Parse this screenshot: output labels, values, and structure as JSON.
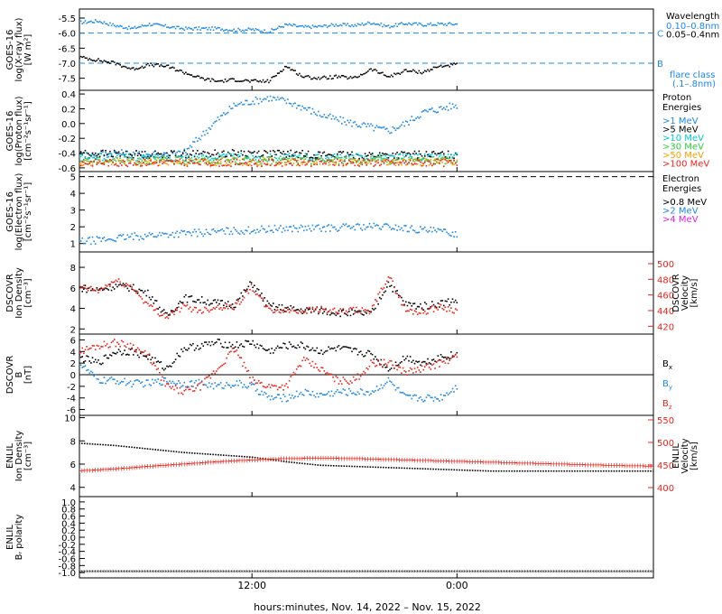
{
  "colors": {
    "black": "#000000",
    "blue": "#1e88e5",
    "cyan": "#00c8d8",
    "green": "#2ecc40",
    "orange": "#f2a100",
    "red": "#e8241a",
    "magenta": "#e020e0"
  },
  "footer": {
    "x_label": "hours:minutes, Nov. 14, 2022 – Nov. 15, 2022",
    "x_ticks": [
      {
        "hour": 12,
        "label": "12:00"
      },
      {
        "hour": 24,
        "label": "0:00"
      }
    ],
    "x_range_hours": [
      1.9,
      35.5
    ]
  },
  "chart_data": [
    {
      "id": "xray",
      "type": "line",
      "ylabel": [
        "GOES-16",
        "log(X-ray flux)",
        "[W m²]"
      ],
      "ylim": [
        -7.9,
        -5.2
      ],
      "y_ticks": [
        -5.5,
        -6.0,
        -6.5,
        -7.0,
        -7.5
      ],
      "y_tick_labels": [
        "-5.5",
        "-6.0",
        "-6.5",
        "-7.0",
        "-7.5"
      ],
      "legend_title": "Wavelength",
      "flare_class_lines": [
        {
          "y": -6.0,
          "label": "C"
        },
        {
          "y": -7.0,
          "label": "B"
        }
      ],
      "flare_class_label": [
        "flare class",
        "(.1–.8nm)"
      ],
      "series": [
        {
          "name": "0.10–0.8nm",
          "color_key": "blue",
          "x": [
            1.9,
            3,
            4,
            5,
            6,
            7,
            8,
            9,
            10,
            11,
            12,
            13,
            14,
            15,
            16,
            17,
            18,
            19,
            20,
            21,
            22,
            23,
            24
          ],
          "y": [
            -5.65,
            -5.6,
            -5.75,
            -5.85,
            -5.7,
            -5.78,
            -5.85,
            -5.85,
            -5.85,
            -5.9,
            -5.88,
            -5.95,
            -5.72,
            -5.8,
            -5.78,
            -5.72,
            -5.75,
            -5.65,
            -5.78,
            -5.68,
            -5.72,
            -5.7,
            -5.7
          ]
        },
        {
          "name": "0.05–0.4nm",
          "color_key": "black",
          "x": [
            1.9,
            3,
            4,
            5,
            6,
            7,
            8,
            9,
            10,
            11,
            12,
            13,
            14,
            15,
            16,
            17,
            18,
            19,
            20,
            21,
            22,
            23,
            24
          ],
          "y": [
            -6.8,
            -6.9,
            -7.0,
            -7.2,
            -7.05,
            -7.1,
            -7.3,
            -7.5,
            -7.6,
            -7.55,
            -7.6,
            -7.6,
            -7.1,
            -7.45,
            -7.5,
            -7.45,
            -7.5,
            -7.2,
            -7.45,
            -7.25,
            -7.3,
            -7.1,
            -7.05
          ]
        }
      ]
    },
    {
      "id": "proton",
      "type": "scatter",
      "ylabel": [
        "GOES-16",
        "log(Proton flux)",
        "[cm⁻²s⁻¹sr⁻¹]"
      ],
      "ylim": [
        -0.65,
        0.45
      ],
      "y_ticks": [
        0.4,
        0.2,
        0.0,
        -0.2,
        -0.4,
        -0.6
      ],
      "y_tick_labels": [
        "0.4",
        "0.2",
        "0.0",
        "-0.2",
        "-0.4",
        "-0.6"
      ],
      "legend_title": "Proton Energies",
      "series": [
        {
          "name": ">1 MeV",
          "color_key": "blue",
          "x": [
            1.9,
            4,
            6,
            8,
            10,
            11,
            12,
            13,
            14,
            15,
            16,
            17,
            18,
            19,
            20,
            21,
            22,
            23,
            24
          ],
          "y": [
            -0.45,
            -0.4,
            -0.42,
            -0.4,
            0.05,
            0.25,
            0.3,
            0.35,
            0.3,
            0.22,
            0.12,
            0.05,
            0.0,
            -0.05,
            -0.1,
            0.0,
            0.15,
            0.2,
            0.25
          ]
        },
        {
          "name": ">5 MeV",
          "color_key": "black",
          "x": [
            1.9,
            6,
            12,
            18,
            24
          ],
          "y": [
            -0.4,
            -0.42,
            -0.4,
            -0.43,
            -0.42
          ]
        },
        {
          "name": ">10 MeV",
          "color_key": "cyan",
          "x": [
            1.9,
            6,
            12,
            18,
            24
          ],
          "y": [
            -0.45,
            -0.46,
            -0.45,
            -0.46,
            -0.45
          ]
        },
        {
          "name": ">30 MeV",
          "color_key": "green",
          "x": [
            1.9,
            6,
            12,
            18,
            24
          ],
          "y": [
            -0.5,
            -0.5,
            -0.5,
            -0.5,
            -0.5
          ]
        },
        {
          "name": ">50 MeV",
          "color_key": "orange",
          "x": [
            1.9,
            6,
            12,
            18,
            24
          ],
          "y": [
            -0.52,
            -0.52,
            -0.52,
            -0.52,
            -0.52
          ]
        },
        {
          "name": ">100 MeV",
          "color_key": "red",
          "x": [
            1.9,
            6,
            12,
            18,
            24
          ],
          "y": [
            -0.53,
            -0.53,
            -0.53,
            -0.53,
            -0.53
          ]
        }
      ]
    },
    {
      "id": "electron",
      "type": "scatter",
      "ylabel": [
        "GOES-16",
        "log(Electron flux)",
        "[cm⁻²s⁻¹sr⁻¹]"
      ],
      "ylim": [
        0.5,
        5.3
      ],
      "y_ticks": [
        5,
        4,
        3,
        2,
        1
      ],
      "y_tick_labels": [
        "5",
        "4",
        "3",
        "2",
        "1"
      ],
      "ref_line_y": 5,
      "legend_title": "Electron Energies",
      "series": [
        {
          "name": ">0.8 MeV",
          "color_key": "black",
          "x": [],
          "y": []
        },
        {
          "name": ">2 MeV",
          "color_key": "blue",
          "x": [
            1.9,
            4,
            6,
            8,
            10,
            12,
            14,
            16,
            18,
            20,
            22,
            24
          ],
          "y": [
            1.1,
            1.3,
            1.5,
            1.6,
            1.7,
            1.8,
            1.9,
            1.9,
            2.0,
            2.0,
            1.8,
            1.6
          ]
        },
        {
          "name": ">4 MeV",
          "color_key": "magenta",
          "x": [],
          "y": []
        }
      ]
    },
    {
      "id": "dscovr_density",
      "type": "scatter",
      "ylabel": [
        "DSCOVR",
        "Ion Density",
        "[cm⁻³]"
      ],
      "ylim": [
        1.5,
        9.5
      ],
      "y_ticks": [
        8,
        6,
        4,
        2
      ],
      "y_tick_labels": [
        "8",
        "6",
        "4",
        "2"
      ],
      "y2label": [
        "DSCOVR",
        "Velocity",
        "[km/s]"
      ],
      "y2lim": [
        410,
        515
      ],
      "y2_ticks": [
        500,
        480,
        460,
        440,
        420
      ],
      "y2_tick_labels": [
        "500",
        "480",
        "460",
        "440",
        "420"
      ],
      "series": [
        {
          "name": "Ion Density",
          "color_key": "black",
          "x": [
            1.9,
            3,
            4,
            5,
            6,
            7,
            8,
            9,
            10,
            11,
            12,
            13,
            14,
            15,
            16,
            17,
            18,
            19,
            20,
            21,
            22,
            23,
            24
          ],
          "y": [
            6,
            5.8,
            6.2,
            6.0,
            5.4,
            3.2,
            5.0,
            4.8,
            4.5,
            4.4,
            6.5,
            4.2,
            4.0,
            3.8,
            3.8,
            3.6,
            3.5,
            3.5,
            6.5,
            4.4,
            4.2,
            4.5,
            4.8
          ]
        },
        {
          "name": "Velocity",
          "color_key": "red",
          "axis": "right",
          "x": [
            1.9,
            3,
            4,
            5,
            6,
            7,
            8,
            9,
            10,
            11,
            12,
            13,
            14,
            15,
            16,
            17,
            18,
            19,
            20,
            21,
            22,
            23,
            24
          ],
          "y": [
            470,
            465,
            478,
            470,
            445,
            432,
            445,
            440,
            445,
            445,
            470,
            440,
            440,
            440,
            442,
            438,
            440,
            440,
            485,
            440,
            438,
            445,
            440
          ]
        }
      ]
    },
    {
      "id": "dscovr_b",
      "type": "scatter",
      "ylabel": [
        "DSCOVR",
        "B",
        "[nT]"
      ],
      "ylim": [
        -7,
        7
      ],
      "y_ticks": [
        6,
        4,
        2,
        0,
        -2,
        -4,
        -6
      ],
      "y_tick_labels": [
        "6",
        "4",
        "2",
        "0",
        "-2",
        "-4",
        "-6"
      ],
      "zero_line": true,
      "series": [
        {
          "name": "B",
          "subscript": "x",
          "color_key": "black",
          "x": [
            1.9,
            3,
            4,
            5,
            6,
            7,
            8,
            9,
            10,
            11,
            12,
            13,
            14,
            15,
            16,
            17,
            18,
            19,
            20,
            21,
            22,
            23,
            24
          ],
          "y": [
            3,
            2,
            4,
            4,
            3,
            1,
            4.5,
            5,
            5.5,
            5,
            5.5,
            4,
            5,
            5,
            4,
            4.5,
            4,
            3.5,
            1,
            3,
            2,
            3,
            3.5
          ]
        },
        {
          "name": "B",
          "subscript": "y",
          "color_key": "blue",
          "x": [
            1.9,
            3,
            4,
            5,
            6,
            7,
            8,
            9,
            10,
            11,
            12,
            13,
            14,
            15,
            16,
            17,
            18,
            19,
            20,
            21,
            22,
            23,
            24
          ],
          "y": [
            2,
            -1,
            -1,
            -1.5,
            -1.5,
            -1,
            -1.5,
            -1.5,
            -2,
            -1.5,
            -2,
            -4,
            -4,
            -3,
            -3.5,
            -3,
            -3,
            -3,
            -1,
            -4,
            -4,
            -4,
            -2
          ]
        },
        {
          "name": "B",
          "subscript": "z",
          "color_key": "red",
          "x": [
            1.9,
            3,
            4,
            5,
            6,
            7,
            8,
            9,
            10,
            11,
            12,
            13,
            14,
            15,
            16,
            17,
            18,
            19,
            20,
            21,
            22,
            23,
            24
          ],
          "y": [
            4,
            5,
            5.5,
            5,
            3,
            -2,
            -3,
            -2,
            1,
            4.5,
            -1,
            -2,
            -2,
            2.5,
            1,
            -1,
            -1,
            2,
            2,
            0.5,
            1,
            2,
            3
          ]
        }
      ]
    },
    {
      "id": "enlil_density",
      "type": "line",
      "ylabel": [
        "ENLIL",
        "Ion Density",
        "[cm⁻³]"
      ],
      "ylim": [
        3.2,
        10.2
      ],
      "y_ticks": [
        10,
        8,
        6,
        4
      ],
      "y_tick_labels": [
        "10",
        "8",
        "6",
        "4"
      ],
      "y2label": [
        "ENLIL",
        "Velocity",
        "[km/s]"
      ],
      "y2lim": [
        380,
        560
      ],
      "y2_ticks": [
        550,
        500,
        450,
        400
      ],
      "y2_tick_labels": [
        "550",
        "500",
        "450",
        "400"
      ],
      "series": [
        {
          "name": "Ion Density",
          "color_key": "black",
          "x": [
            1.9,
            4,
            6,
            8,
            10,
            12,
            14,
            16,
            18,
            20,
            22,
            24,
            26,
            28,
            30,
            32,
            35.5
          ],
          "y": [
            7.8,
            7.6,
            7.3,
            7.0,
            6.8,
            6.6,
            6.2,
            5.9,
            5.8,
            5.7,
            5.6,
            5.5,
            5.4,
            5.4,
            5.4,
            5.4,
            5.4
          ]
        },
        {
          "name": "Velocity",
          "color_key": "red",
          "axis": "right",
          "x": [
            1.9,
            4,
            6,
            8,
            10,
            12,
            14,
            16,
            18,
            20,
            22,
            24,
            26,
            28,
            30,
            32,
            35.5
          ],
          "y": [
            438,
            442,
            448,
            453,
            458,
            462,
            465,
            466,
            465,
            463,
            461,
            459,
            457,
            455,
            453,
            451,
            448
          ]
        }
      ]
    },
    {
      "id": "enlil_polarity",
      "type": "scatter",
      "ylabel": [
        "ENLIL",
        "Bᵣ polarity"
      ],
      "ylim": [
        -1.15,
        1.15
      ],
      "y_ticks": [
        1.0,
        0.8,
        0.6,
        0.4,
        0.2,
        0.0,
        -0.2,
        -0.4,
        -0.6,
        -0.8,
        -1.0
      ],
      "y_tick_labels": [
        "1.0",
        "0.8",
        "0.6",
        "0.4",
        "0.2",
        "0.0",
        "-0.2",
        "-0.4",
        "-0.6",
        "-0.8",
        "-1.0"
      ],
      "series": [
        {
          "name": "polarity",
          "color_key": "black",
          "x": [
            1.9,
            35.5
          ],
          "y": [
            -1.0,
            -1.0
          ]
        }
      ]
    }
  ]
}
